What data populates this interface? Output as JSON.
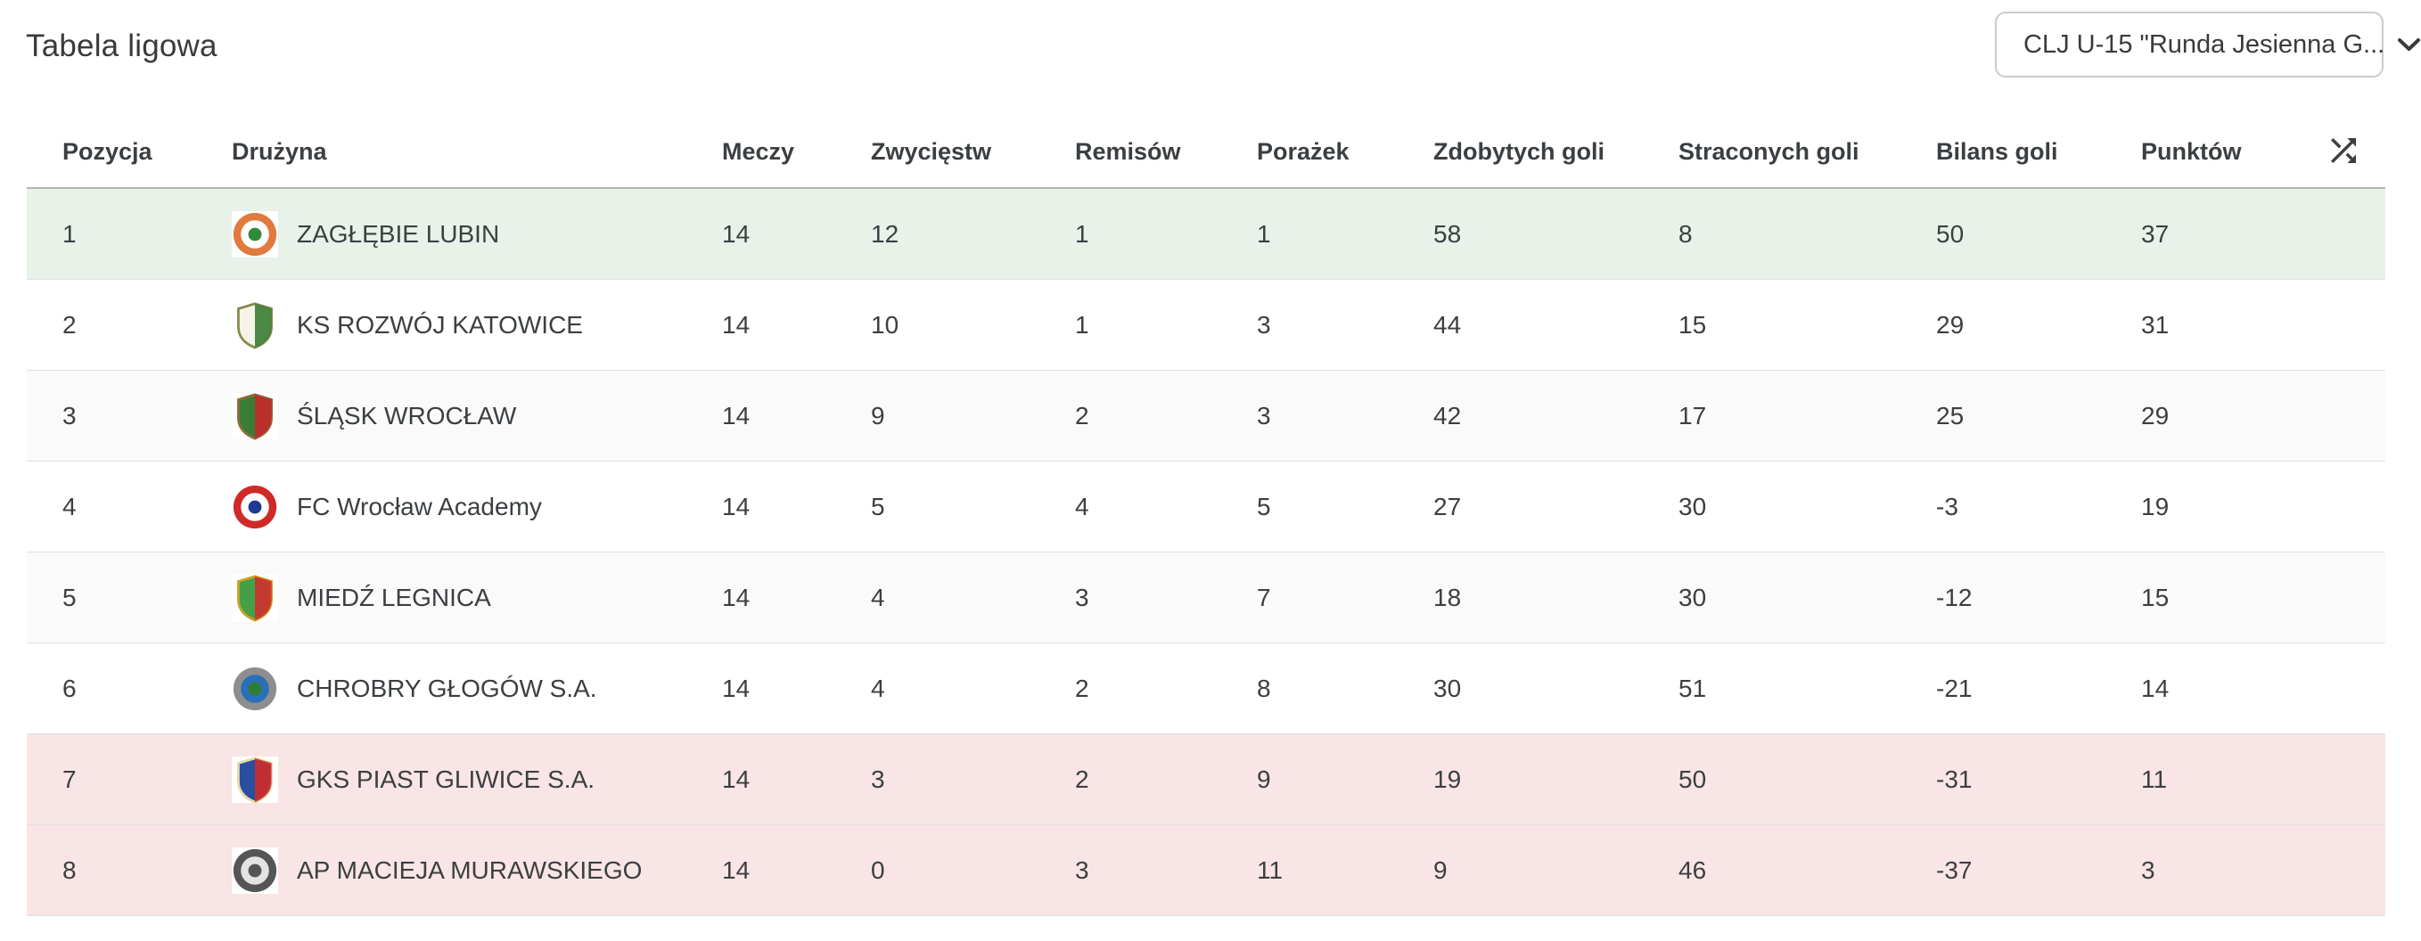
{
  "header": {
    "title": "Tabela ligowa",
    "dropdown": {
      "value": "CLJ U-15 \"Runda Jesienna G...",
      "icon": "chevron-down-icon"
    }
  },
  "table": {
    "columns": [
      "Pozycja",
      "Drużyna",
      "Meczy",
      "Zwycięstw",
      "Remisów",
      "Porażek",
      "Zdobytych goli",
      "Straconych goli",
      "Bilans goli",
      "Punktów"
    ],
    "header_icon": "shuffle-icon",
    "colors": {
      "promotion_bg": "#e8f2e9",
      "relegation_bg": "#f9e5e5",
      "stripe_bg": "#fafafa",
      "header_border": "#b4b7b4",
      "row_divider": "#e0e0e0"
    },
    "rows": [
      {
        "position": 1,
        "team": "ZAGŁĘBIE LUBIN",
        "matches": 14,
        "wins": 12,
        "draws": 1,
        "losses": 1,
        "goals_for": 58,
        "goals_against": 8,
        "goal_diff": 50,
        "points": 37,
        "zone": "promotion",
        "logo": {
          "type": "circle",
          "colors": [
            "#e07a3f",
            "#ffffff",
            "#2e8b3a"
          ]
        }
      },
      {
        "position": 2,
        "team": "KS ROZWÓJ KATOWICE",
        "matches": 14,
        "wins": 10,
        "draws": 1,
        "losses": 3,
        "goals_for": 44,
        "goals_against": 15,
        "goal_diff": 29,
        "points": 31,
        "zone": null,
        "logo": {
          "type": "shield",
          "colors": [
            "#f4f4e8",
            "#3a7d35",
            "#8a8a4a"
          ]
        }
      },
      {
        "position": 3,
        "team": "ŚLĄSK WROCŁAW",
        "matches": 14,
        "wins": 9,
        "draws": 2,
        "losses": 3,
        "goals_for": 42,
        "goals_against": 17,
        "goal_diff": 25,
        "points": 29,
        "zone": null,
        "logo": {
          "type": "shield",
          "colors": [
            "#3a7d35",
            "#c62828",
            "#8a6d3b"
          ]
        }
      },
      {
        "position": 4,
        "team": "FC Wrocław Academy",
        "matches": 14,
        "wins": 5,
        "draws": 4,
        "losses": 5,
        "goals_for": 27,
        "goals_against": 30,
        "goal_diff": -3,
        "points": 19,
        "zone": null,
        "logo": {
          "type": "circle",
          "colors": [
            "#cf2a27",
            "#ffffff",
            "#1f3a93"
          ]
        }
      },
      {
        "position": 5,
        "team": "MIEDŹ LEGNICA",
        "matches": 14,
        "wins": 4,
        "draws": 3,
        "losses": 7,
        "goals_for": 18,
        "goals_against": 30,
        "goal_diff": -12,
        "points": 15,
        "zone": null,
        "logo": {
          "type": "shield",
          "colors": [
            "#43a047",
            "#d32f2f",
            "#c9a227"
          ]
        }
      },
      {
        "position": 6,
        "team": "CHROBRY GŁOGÓW S.A.",
        "matches": 14,
        "wins": 4,
        "draws": 2,
        "losses": 8,
        "goals_for": 30,
        "goals_against": 51,
        "goal_diff": -21,
        "points": 14,
        "zone": null,
        "logo": {
          "type": "circle",
          "colors": [
            "#8e8e8e",
            "#2a6fb8",
            "#2f7d32"
          ]
        }
      },
      {
        "position": 7,
        "team": "GKS PIAST GLIWICE S.A.",
        "matches": 14,
        "wins": 3,
        "draws": 2,
        "losses": 9,
        "goals_for": 19,
        "goals_against": 50,
        "goal_diff": -31,
        "points": 11,
        "zone": "relegation",
        "logo": {
          "type": "shield",
          "colors": [
            "#2a4fa0",
            "#cf2a27",
            "#e6d9a8"
          ]
        }
      },
      {
        "position": 8,
        "team": "AP MACIEJA MURAWSKIEGO",
        "matches": 14,
        "wins": 0,
        "draws": 3,
        "losses": 11,
        "goals_for": 9,
        "goals_against": 46,
        "goal_diff": -37,
        "points": 3,
        "zone": "relegation",
        "logo": {
          "type": "circle",
          "colors": [
            "#555555",
            "#e3e3e3",
            "#555555"
          ]
        }
      }
    ]
  }
}
